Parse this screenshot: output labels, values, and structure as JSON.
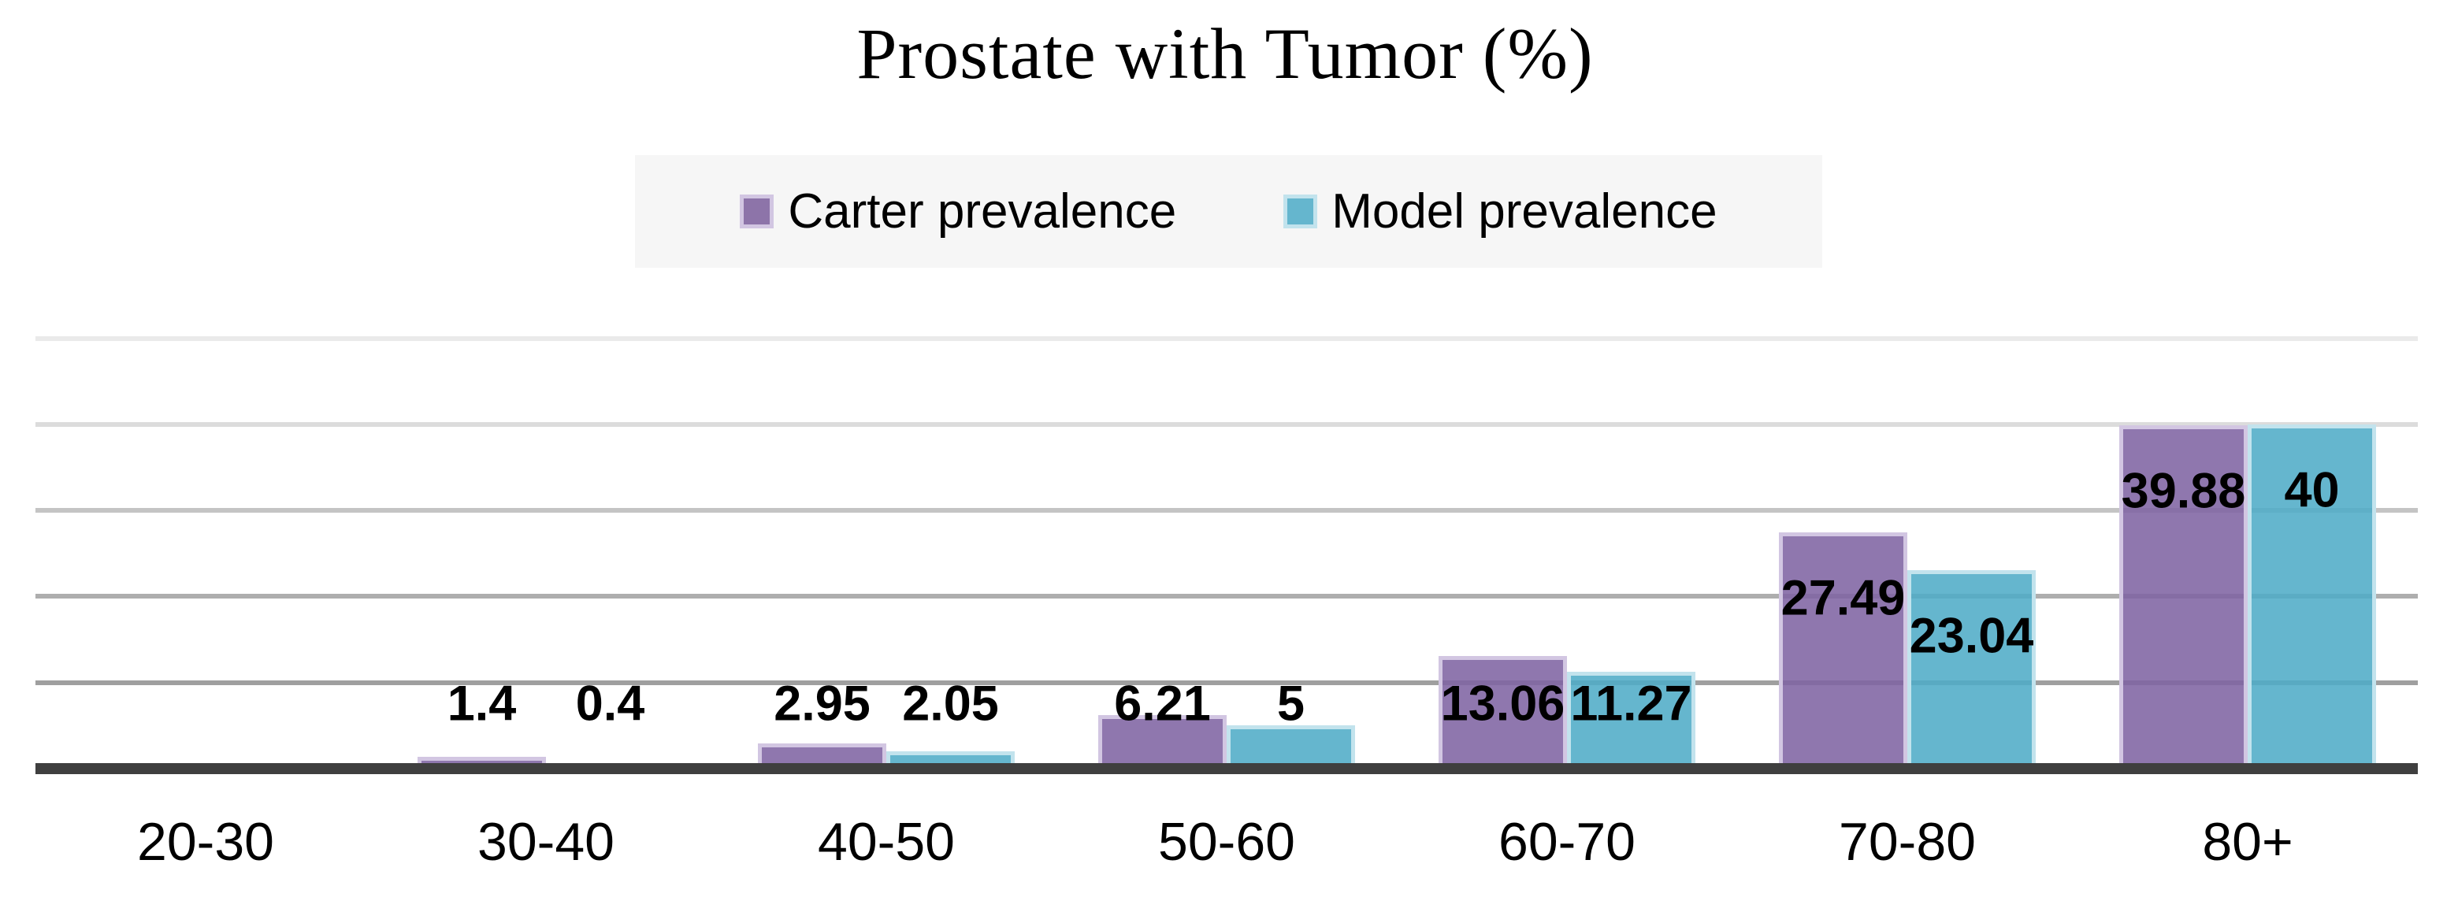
{
  "title": "Prostate with Tumor (%)",
  "legend": {
    "items": [
      {
        "label": "Carter prevalence",
        "color": "#8d74a9",
        "border_color": "#d2c6e2"
      },
      {
        "label": "Model prevalence",
        "color": "#65b6ce",
        "border_color": "#c2e3ed"
      }
    ],
    "background": "#f6f6f6",
    "position": "top"
  },
  "chart_data": {
    "type": "bar",
    "title": "Prostate with Tumor (%)",
    "categories": [
      "20-30",
      "30-40",
      "40-50",
      "50-60",
      "60-70",
      "70-80",
      "80+"
    ],
    "series": [
      {
        "name": "Carter prevalence",
        "values": [
          0,
          1.4,
          2.95,
          6.21,
          13.06,
          27.49,
          39.88
        ],
        "data_labels": [
          "",
          "1.4",
          "2.95",
          "6.21",
          "13.06",
          "27.49",
          "39.88"
        ],
        "fill": "rgba(128,100,163,0.88)",
        "border": "#d2c6e2"
      },
      {
        "name": "Model prevalence",
        "values": [
          0,
          0.4,
          2.05,
          5,
          11.27,
          23.04,
          40
        ],
        "data_labels": [
          "",
          "0.4",
          "2.05",
          "5",
          "11.27",
          "23.04",
          "40"
        ],
        "fill": "rgba(80,172,199,0.88)",
        "border": "#c2e3ed"
      }
    ],
    "xlabel": "",
    "ylabel": "",
    "ylim": [
      0,
      50
    ],
    "gridline_step": 10,
    "gridline_values": [
      50,
      40,
      30,
      20,
      10
    ],
    "gridline_colors": [
      "#eaeaea",
      "#dcdcdc",
      "#c4c4c4",
      "#aeaeae",
      "#9f9f9f"
    ],
    "y_axis_labels_visible": false,
    "grid": true,
    "legend_position": "top",
    "axis_line_color": "#3f3f3f"
  }
}
